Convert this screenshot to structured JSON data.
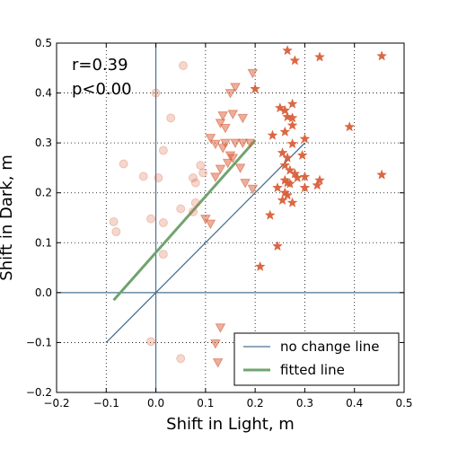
{
  "chart_data": {
    "type": "scatter",
    "xlabel": "Shift in Light, m",
    "ylabel": "Shift in Dark, m",
    "xlim": [
      -0.2,
      0.5
    ],
    "ylim": [
      -0.2,
      0.5
    ],
    "xticks": [
      "−0.2",
      "−0.1",
      "0.0",
      "0.1",
      "0.2",
      "0.3",
      "0.4",
      "0.5"
    ],
    "yticks": [
      "−0.2",
      "−0.1",
      "0.0",
      "0.1",
      "0.2",
      "0.3",
      "0.4",
      "0.5"
    ],
    "grid": true,
    "annotations": [
      "r=0.39",
      "p<0.00"
    ],
    "legend": {
      "placement": "lower-right",
      "entries": [
        "no change line",
        "fitted line"
      ]
    },
    "colors": {
      "marker": "#d9603b",
      "no_change_line": "#4a7291",
      "fitted_line": "#6fa46f"
    },
    "series": [
      {
        "marker": "circle",
        "points": [
          [
            0.055,
            0.455
          ],
          [
            0.0,
            0.4
          ],
          [
            0.03,
            0.35
          ],
          [
            0.015,
            0.285
          ],
          [
            -0.065,
            0.258
          ],
          [
            -0.025,
            0.233
          ],
          [
            0.005,
            0.23
          ],
          [
            0.09,
            0.255
          ],
          [
            0.095,
            0.24
          ],
          [
            0.075,
            0.23
          ],
          [
            0.08,
            0.22
          ],
          [
            0.08,
            0.18
          ],
          [
            0.05,
            0.168
          ],
          [
            0.075,
            0.162
          ],
          [
            -0.01,
            0.148
          ],
          [
            0.015,
            0.14
          ],
          [
            -0.085,
            0.142
          ],
          [
            -0.08,
            0.122
          ],
          [
            0.015,
            0.077
          ],
          [
            -0.01,
            -0.098
          ],
          [
            0.05,
            -0.132
          ]
        ]
      },
      {
        "marker": "triangle-down",
        "points": [
          [
            0.195,
            0.44
          ],
          [
            0.16,
            0.412
          ],
          [
            0.15,
            0.4
          ],
          [
            0.135,
            0.355
          ],
          [
            0.155,
            0.358
          ],
          [
            0.175,
            0.35
          ],
          [
            0.13,
            0.34
          ],
          [
            0.14,
            0.33
          ],
          [
            0.11,
            0.31
          ],
          [
            0.12,
            0.298
          ],
          [
            0.14,
            0.3
          ],
          [
            0.135,
            0.29
          ],
          [
            0.16,
            0.3
          ],
          [
            0.175,
            0.3
          ],
          [
            0.19,
            0.3
          ],
          [
            0.15,
            0.275
          ],
          [
            0.155,
            0.27
          ],
          [
            0.145,
            0.26
          ],
          [
            0.13,
            0.248
          ],
          [
            0.17,
            0.25
          ],
          [
            0.12,
            0.232
          ],
          [
            0.18,
            0.22
          ],
          [
            0.195,
            0.208
          ],
          [
            0.1,
            0.148
          ],
          [
            0.11,
            0.138
          ],
          [
            0.13,
            -0.07
          ],
          [
            0.12,
            -0.102
          ],
          [
            0.125,
            -0.14
          ]
        ]
      },
      {
        "marker": "star",
        "points": [
          [
            0.265,
            0.485
          ],
          [
            0.28,
            0.465
          ],
          [
            0.33,
            0.472
          ],
          [
            0.455,
            0.474
          ],
          [
            0.2,
            0.408
          ],
          [
            0.25,
            0.37
          ],
          [
            0.26,
            0.365
          ],
          [
            0.275,
            0.378
          ],
          [
            0.265,
            0.352
          ],
          [
            0.275,
            0.35
          ],
          [
            0.275,
            0.335
          ],
          [
            0.26,
            0.322
          ],
          [
            0.235,
            0.315
          ],
          [
            0.3,
            0.308
          ],
          [
            0.39,
            0.332
          ],
          [
            0.275,
            0.298
          ],
          [
            0.255,
            0.28
          ],
          [
            0.295,
            0.275
          ],
          [
            0.265,
            0.27
          ],
          [
            0.26,
            0.255
          ],
          [
            0.27,
            0.245
          ],
          [
            0.28,
            0.238
          ],
          [
            0.3,
            0.232
          ],
          [
            0.285,
            0.23
          ],
          [
            0.26,
            0.225
          ],
          [
            0.265,
            0.22
          ],
          [
            0.27,
            0.218
          ],
          [
            0.33,
            0.225
          ],
          [
            0.325,
            0.215
          ],
          [
            0.245,
            0.21
          ],
          [
            0.3,
            0.21
          ],
          [
            0.26,
            0.2
          ],
          [
            0.265,
            0.195
          ],
          [
            0.255,
            0.185
          ],
          [
            0.275,
            0.18
          ],
          [
            0.455,
            0.236
          ],
          [
            0.23,
            0.155
          ],
          [
            0.245,
            0.093
          ],
          [
            0.21,
            0.052
          ]
        ]
      }
    ],
    "no_change_line": {
      "x": [
        -0.1,
        0.3
      ],
      "y": [
        -0.1,
        0.3
      ]
    },
    "fitted_line": {
      "x": [
        -0.085,
        0.2
      ],
      "y": [
        -0.015,
        0.305
      ]
    }
  }
}
